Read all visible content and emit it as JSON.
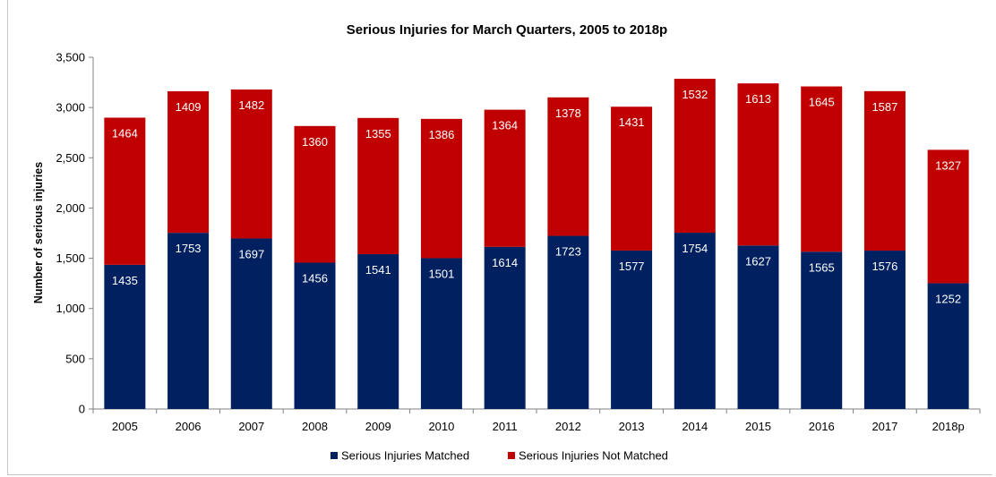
{
  "chart_data": {
    "type": "bar",
    "stacked": true,
    "title": "Serious Injuries for March Quarters, 2005 to 2018p",
    "xlabel": "",
    "ylabel": "Number of serious injuries",
    "ylim": [
      0,
      3500
    ],
    "yticks": [
      0,
      500,
      1000,
      1500,
      2000,
      2500,
      3000,
      3500
    ],
    "ytick_labels": [
      "0",
      "500",
      "1,000",
      "1,500",
      "2,000",
      "2,500",
      "3,000",
      "3,500"
    ],
    "grid": false,
    "legend_position": "bottom",
    "categories": [
      "2005",
      "2006",
      "2007",
      "2008",
      "2009",
      "2010",
      "2011",
      "2012",
      "2013",
      "2014",
      "2015",
      "2016",
      "2017",
      "2018p"
    ],
    "series": [
      {
        "name": "Serious Injuries Matched",
        "color": "#002060",
        "values": [
          1435,
          1753,
          1697,
          1456,
          1541,
          1501,
          1614,
          1723,
          1577,
          1754,
          1627,
          1565,
          1576,
          1252
        ]
      },
      {
        "name": "Serious Injuries Not Matched",
        "color": "#C00000",
        "values": [
          1464,
          1409,
          1482,
          1360,
          1355,
          1386,
          1364,
          1378,
          1431,
          1532,
          1613,
          1645,
          1587,
          1327
        ]
      }
    ]
  }
}
